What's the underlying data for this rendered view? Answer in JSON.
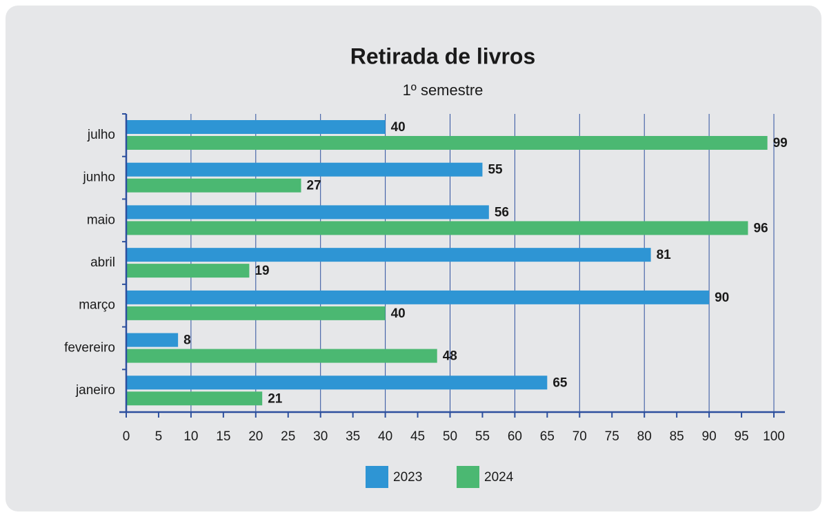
{
  "chart_data": {
    "type": "bar",
    "orientation": "horizontal",
    "title": "Retirada de livros",
    "subtitle": "1º semestre",
    "categories": [
      "janeiro",
      "fevereiro",
      "março",
      "abril",
      "maio",
      "junho",
      "julho"
    ],
    "series": [
      {
        "name": "2023",
        "color": "#2e95d4",
        "values": [
          65,
          8,
          90,
          81,
          56,
          55,
          40
        ]
      },
      {
        "name": "2024",
        "color": "#4bb872",
        "values": [
          21,
          48,
          40,
          19,
          96,
          27,
          99
        ]
      }
    ],
    "xlim": [
      0,
      100
    ],
    "xticks": [
      0,
      5,
      10,
      15,
      20,
      25,
      30,
      35,
      40,
      45,
      50,
      55,
      60,
      65,
      70,
      75,
      80,
      85,
      90,
      95,
      100
    ],
    "grid": true,
    "legend": "bottom"
  }
}
